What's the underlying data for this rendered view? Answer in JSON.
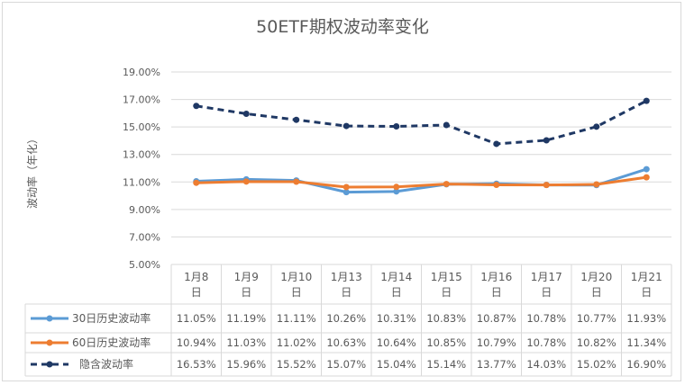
{
  "chart_data": {
    "type": "line",
    "title": "50ETF期权波动率变化",
    "ylabel": "波动率（年化）",
    "xlabel": "",
    "ylim": [
      5,
      19
    ],
    "yticks": [
      "5.00%",
      "7.00%",
      "9.00%",
      "11.00%",
      "13.00%",
      "15.00%",
      "17.00%",
      "19.00%"
    ],
    "ytick_values": [
      5,
      7,
      9,
      11,
      13,
      15,
      17,
      19
    ],
    "grid": true,
    "legend": "data-table-bottom",
    "categories": [
      "1月8日",
      "1月9日",
      "1月10日",
      "1月13日",
      "1月14日",
      "1月15日",
      "1月16日",
      "1月17日",
      "1月20日",
      "1月21日"
    ],
    "series": [
      {
        "name": "30日历史波动率",
        "color": "#5b9bd5",
        "dash": false,
        "values": [
          11.05,
          11.19,
          11.11,
          10.26,
          10.31,
          10.83,
          10.87,
          10.78,
          10.77,
          11.93
        ],
        "labels": [
          "11.05%",
          "11.19%",
          "11.11%",
          "10.26%",
          "10.31%",
          "10.83%",
          "10.87%",
          "10.78%",
          "10.77%",
          "11.93%"
        ]
      },
      {
        "name": "60日历史波动率",
        "color": "#ed7d31",
        "dash": false,
        "values": [
          10.94,
          11.03,
          11.02,
          10.63,
          10.64,
          10.85,
          10.79,
          10.78,
          10.82,
          11.34
        ],
        "labels": [
          "10.94%",
          "11.03%",
          "11.02%",
          "10.63%",
          "10.64%",
          "10.85%",
          "10.79%",
          "10.78%",
          "10.82%",
          "11.34%"
        ]
      },
      {
        "name": "隐含波动率",
        "color": "#1f3864",
        "dash": true,
        "values": [
          16.53,
          15.96,
          15.52,
          15.07,
          15.04,
          15.14,
          13.77,
          14.03,
          15.02,
          16.9
        ],
        "labels": [
          "16.53%",
          "15.96%",
          "15.52%",
          "15.07%",
          "15.04%",
          "15.14%",
          "13.77%",
          "14.03%",
          "15.02%",
          "16.90%"
        ]
      }
    ]
  }
}
